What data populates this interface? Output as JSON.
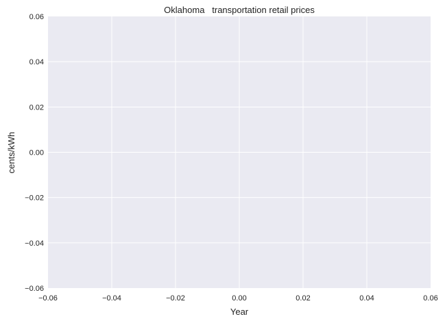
{
  "chart_data": {
    "type": "line",
    "title": "Oklahoma   transportation retail prices",
    "xlabel": "Year",
    "ylabel": "cents/kWh",
    "xlim": [
      -0.06,
      0.06
    ],
    "ylim": [
      -0.06,
      0.06
    ],
    "xticks": [
      "−0.06",
      "−0.04",
      "−0.02",
      "0.00",
      "0.02",
      "0.04",
      "0.06"
    ],
    "yticks": [
      "−0.06",
      "−0.04",
      "−0.02",
      "0.00",
      "0.02",
      "0.04",
      "0.06"
    ],
    "series": [],
    "grid": true,
    "colors": {
      "plot_background": "#eaeaf2",
      "grid": "#ffffff",
      "text": "#222222"
    }
  }
}
